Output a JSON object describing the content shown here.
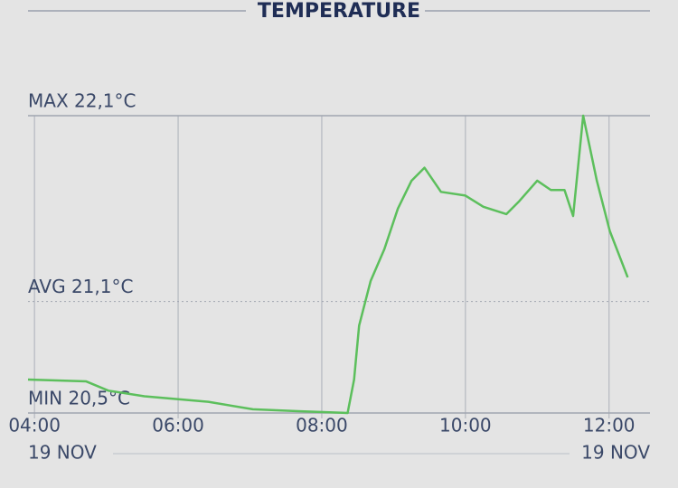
{
  "chart_data": {
    "type": "line",
    "title": "TEMPERATURE",
    "x": [
      3.91,
      4.72,
      5.03,
      5.53,
      6.42,
      7.04,
      7.67,
      8.36,
      8.45,
      8.52,
      8.68,
      8.87,
      9.06,
      9.25,
      9.43,
      9.66,
      10.0,
      10.25,
      10.57,
      10.75,
      11.0,
      11.19,
      11.38,
      11.5,
      11.64,
      11.83,
      12.01,
      12.26
    ],
    "series": [
      {
        "color": "#5cbf5c",
        "values": [
          20.68,
          20.67,
          20.62,
          20.59,
          20.56,
          20.52,
          20.51,
          20.5,
          20.68,
          20.97,
          21.21,
          21.38,
          21.6,
          21.75,
          21.82,
          21.69,
          21.67,
          21.61,
          21.57,
          21.64,
          21.75,
          21.7,
          21.7,
          21.56,
          22.1,
          21.75,
          21.48,
          21.23
        ]
      }
    ],
    "xlim": [
      3.91,
      12.57
    ],
    "xticks": [
      {
        "value": 4,
        "label": "04:00"
      },
      {
        "value": 6,
        "label": "06:00"
      },
      {
        "value": 8,
        "label": "08:00"
      },
      {
        "value": 10,
        "label": "10:00"
      },
      {
        "value": 12,
        "label": "12:00"
      }
    ],
    "ylim": [
      20.5,
      22.1
    ],
    "reference_lines": [
      {
        "value": 22.1,
        "label": "MAX 22,1°C",
        "style": "solid"
      },
      {
        "value": 21.1,
        "label": "AVG 21,1°C",
        "style": "dotted"
      },
      {
        "value": 20.5,
        "label": "MIN 20,5°C",
        "style": "solid"
      }
    ],
    "date_labels": [
      "19 NOV",
      "19 NOV"
    ],
    "grid": true
  }
}
